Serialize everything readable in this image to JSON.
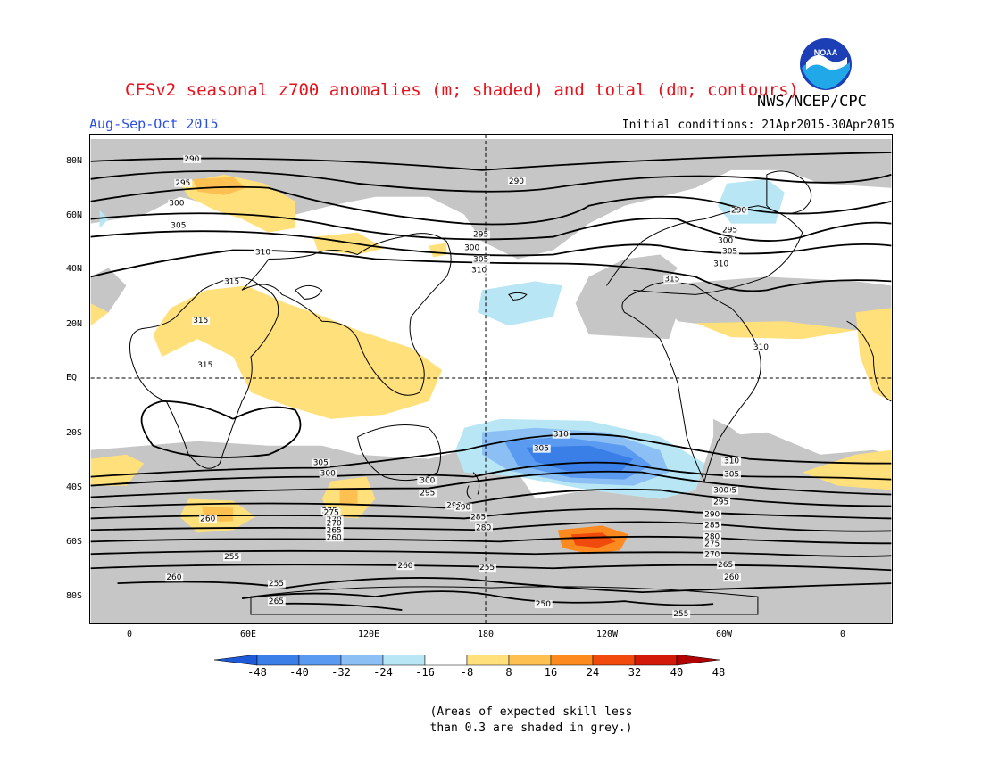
{
  "header": {
    "title": "CFSv2 seasonal z700 anomalies (m; shaded) and total (dm; contours)",
    "agency": "NWS/NCEP/CPC",
    "season": "Aug-Sep-Oct 2015",
    "initial_conditions": "Initial conditions: 21Apr2015-30Apr2015",
    "logo_text": "NOAA"
  },
  "map": {
    "lon_labels": [
      "0",
      "60E",
      "120E",
      "180",
      "120W",
      "60W",
      "0"
    ],
    "lat_labels": [
      "80N",
      "60N",
      "40N",
      "20N",
      "EQ",
      "20S",
      "40S",
      "60S",
      "80S"
    ],
    "colors": {
      "skill_grey": "#c6c6c6",
      "land_line": "#000000",
      "contour": "#000000"
    },
    "contour_labels": [
      {
        "text": "290"
      },
      {
        "text": "295"
      },
      {
        "text": "300"
      },
      {
        "text": "305"
      },
      {
        "text": "310"
      },
      {
        "text": "315"
      },
      {
        "text": "295"
      },
      {
        "text": "300"
      },
      {
        "text": "305"
      },
      {
        "text": "310"
      },
      {
        "text": "290"
      },
      {
        "text": "290"
      },
      {
        "text": "295"
      },
      {
        "text": "300"
      },
      {
        "text": "305"
      },
      {
        "text": "310"
      },
      {
        "text": "315"
      },
      {
        "text": "315"
      },
      {
        "text": "315"
      },
      {
        "text": "310"
      },
      {
        "text": "305"
      },
      {
        "text": "300"
      },
      {
        "text": "295"
      },
      {
        "text": "290"
      },
      {
        "text": "285"
      },
      {
        "text": "280"
      },
      {
        "text": "275"
      },
      {
        "text": "270"
      },
      {
        "text": "265"
      },
      {
        "text": "260"
      },
      {
        "text": "310"
      },
      {
        "text": "305"
      },
      {
        "text": "300"
      },
      {
        "text": "295"
      },
      {
        "text": "290"
      },
      {
        "text": "285"
      },
      {
        "text": "280"
      },
      {
        "text": "275"
      },
      {
        "text": "270"
      },
      {
        "text": "265"
      },
      {
        "text": "260"
      },
      {
        "text": "255"
      },
      {
        "text": "260"
      },
      {
        "text": "255"
      },
      {
        "text": "250"
      },
      {
        "text": "255"
      },
      {
        "text": "260"
      },
      {
        "text": "255"
      },
      {
        "text": "265"
      },
      {
        "text": "300"
      },
      {
        "text": "295"
      },
      {
        "text": "290"
      },
      {
        "text": "260"
      },
      {
        "text": "275"
      },
      {
        "text": "270"
      },
      {
        "text": "265"
      },
      {
        "text": "260"
      },
      {
        "text": "310"
      },
      {
        "text": "305"
      },
      {
        "text": "300"
      },
      {
        "text": "295"
      },
      {
        "text": "290"
      },
      {
        "text": "285"
      },
      {
        "text": "280"
      }
    ]
  },
  "colorbar": {
    "ticks": [
      "-48",
      "-40",
      "-32",
      "-24",
      "-16",
      "-8",
      "8",
      "16",
      "24",
      "32",
      "40",
      "48"
    ],
    "colors": [
      "#1e5ad8",
      "#3a7ee8",
      "#5a9af0",
      "#8cc0f4",
      "#b8e6f4",
      "#ffffff",
      "#ffe07a",
      "#fec050",
      "#fd8a1e",
      "#f04a0c",
      "#d31a0a",
      "#b00000"
    ]
  },
  "footnote": {
    "line1": "(Areas of expected skill less",
    "line2": "than 0.3 are shaded in grey.)"
  }
}
